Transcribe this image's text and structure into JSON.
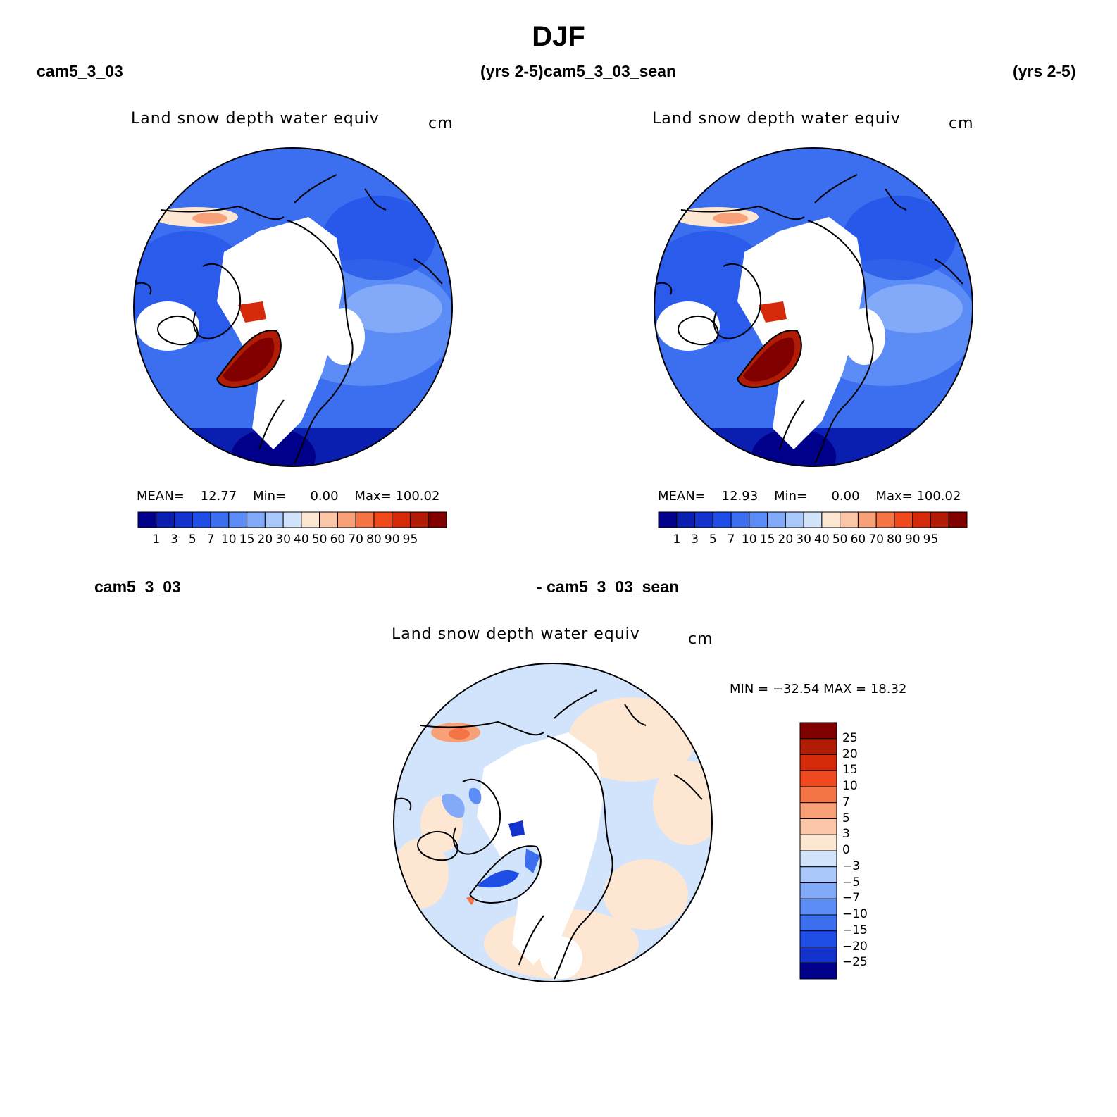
{
  "figure": {
    "title": "DJF"
  },
  "panels": [
    {
      "case_left": "cam5_3_03",
      "case_right": "(yrs 2-5)",
      "field": "Land snow depth water equiv",
      "units": "cm",
      "stats": {
        "mean_label": "MEAN=",
        "mean": "12.77",
        "min_label": "Min=",
        "min": "0.00",
        "max_label": "Max=",
        "max": "100.02"
      }
    },
    {
      "case_left": "cam5_3_03_sean",
      "case_right": "(yrs 2-5)",
      "field": "Land snow depth water equiv",
      "units": "cm",
      "stats": {
        "mean_label": "MEAN=",
        "mean": "12.93",
        "min_label": "Min=",
        "min": "0.00",
        "max_label": "Max=",
        "max": "100.02"
      }
    },
    {
      "case_left": "cam5_3_03",
      "case_right": "- cam5_3_03_sean",
      "field": "Land snow depth water equiv",
      "units": "cm",
      "stats": {
        "minmax": "MIN = −32.54  MAX =   18.32"
      }
    }
  ],
  "colorbars": {
    "abs": {
      "labels": [
        "1",
        "3",
        "5",
        "7",
        "10",
        "15",
        "20",
        "30",
        "40",
        "50",
        "60",
        "70",
        "80",
        "90",
        "95"
      ],
      "colors": [
        "#00008b",
        "#0a1eb0",
        "#1432cc",
        "#1e4ee6",
        "#3c6ef0",
        "#5c8cf5",
        "#82aaf8",
        "#aac8fa",
        "#d2e4fc",
        "#fde6d2",
        "#fcc6a8",
        "#f8a078",
        "#f47446",
        "#ee4a1e",
        "#d42a0a",
        "#b01c06",
        "#800000"
      ]
    },
    "diff": {
      "labels": [
        "25",
        "20",
        "15",
        "10",
        "7",
        "5",
        "3",
        "0",
        "−3",
        "−5",
        "−7",
        "−10",
        "−15",
        "−20",
        "−25"
      ],
      "colors": [
        "#800000",
        "#b01c06",
        "#d42a0a",
        "#ee4a1e",
        "#f47446",
        "#f8a078",
        "#fcc6a8",
        "#fde6d2",
        "#d2e4fc",
        "#aac8fa",
        "#82aaf8",
        "#5c8cf5",
        "#3c6ef0",
        "#1e4ee6",
        "#1432cc",
        "#00008b"
      ]
    }
  }
}
